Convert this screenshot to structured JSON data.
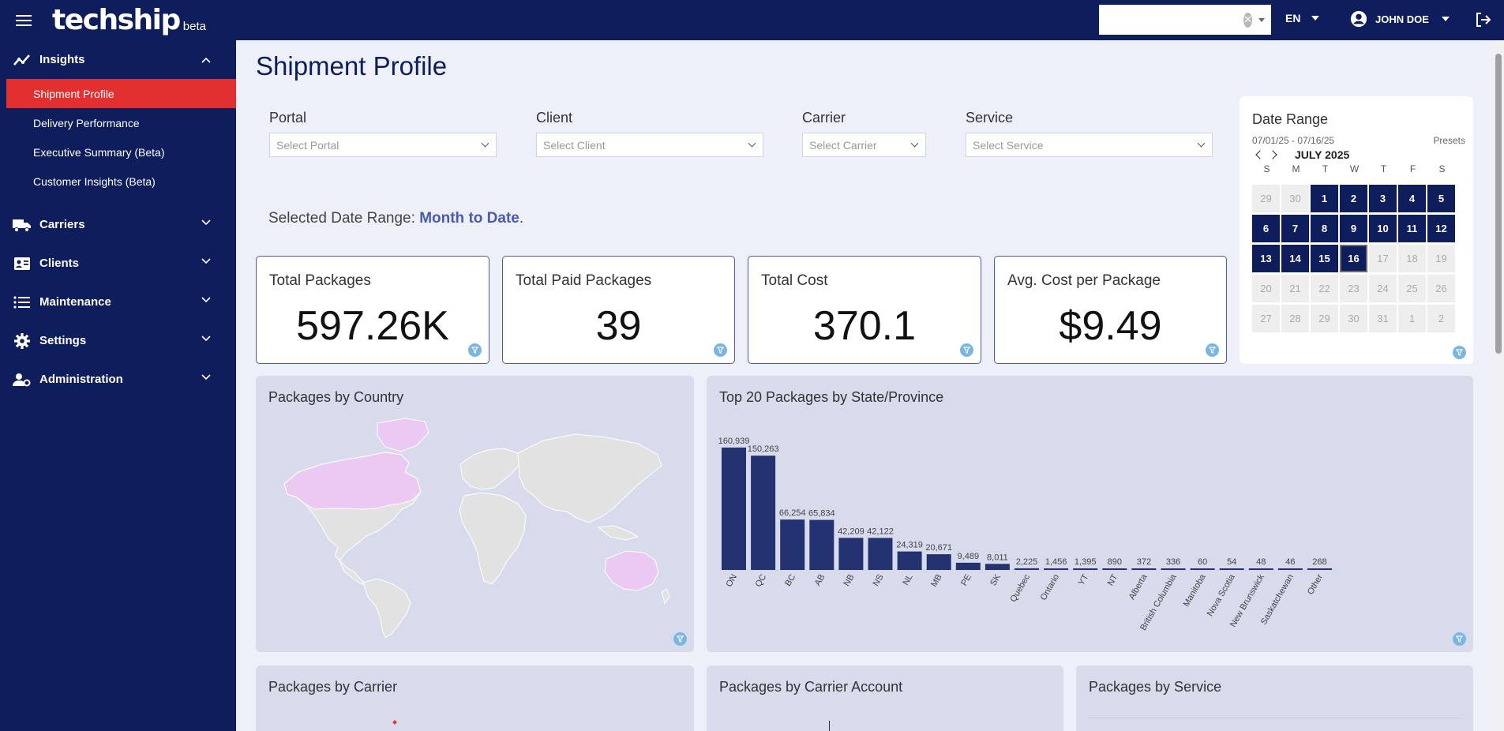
{
  "app": {
    "logo_text": "techship",
    "logo_badge": "beta"
  },
  "topbar": {
    "search_value": "",
    "language": "EN",
    "user_name": "JOHN DOE"
  },
  "sidebar": {
    "sections": [
      {
        "label": "Insights",
        "icon": "chart-line-icon",
        "expanded": true,
        "items": [
          "Shipment Profile",
          "Delivery Performance",
          "Executive Summary (Beta)",
          "Customer Insights (Beta)"
        ]
      },
      {
        "label": "Carriers",
        "icon": "truck-icon"
      },
      {
        "label": "Clients",
        "icon": "contact-card-icon"
      },
      {
        "label": "Maintenance",
        "icon": "list-icon"
      },
      {
        "label": "Settings",
        "icon": "gear-icon"
      },
      {
        "label": "Administration",
        "icon": "user-admin-icon"
      }
    ],
    "active_item": "Shipment Profile"
  },
  "page": {
    "title": "Shipment Profile"
  },
  "filters": {
    "portal": {
      "label": "Portal",
      "placeholder": "Select Portal"
    },
    "client": {
      "label": "Client",
      "placeholder": "Select Client"
    },
    "carrier": {
      "label": "Carrier",
      "placeholder": "Select Carrier"
    },
    "service": {
      "label": "Service",
      "placeholder": "Select Service"
    }
  },
  "selected_range": {
    "prefix": "Selected Date Range:",
    "value": "Month to Date",
    "suffix": "."
  },
  "kpis": [
    {
      "title": "Total Packages",
      "value": "597.26K"
    },
    {
      "title": "Total Paid Packages",
      "value": "39"
    },
    {
      "title": "Total Cost",
      "value": "370.1"
    },
    {
      "title": "Avg. Cost per Package",
      "value": "$9.49"
    }
  ],
  "calendar": {
    "title": "Date Range",
    "range": "07/01/25 - 07/16/25",
    "presets_label": "Presets",
    "month_label": "JULY 2025",
    "dows": [
      "S",
      "M",
      "T",
      "W",
      "T",
      "F",
      "S"
    ],
    "days": [
      [
        "29",
        "muted"
      ],
      [
        "30",
        "muted"
      ],
      [
        "1",
        "sel"
      ],
      [
        "2",
        "sel"
      ],
      [
        "3",
        "sel"
      ],
      [
        "4",
        "sel"
      ],
      [
        "5",
        "sel"
      ],
      [
        "6",
        "sel"
      ],
      [
        "7",
        "sel"
      ],
      [
        "8",
        "sel"
      ],
      [
        "9",
        "sel"
      ],
      [
        "10",
        "sel"
      ],
      [
        "11",
        "sel"
      ],
      [
        "12",
        "sel"
      ],
      [
        "13",
        "sel"
      ],
      [
        "14",
        "sel"
      ],
      [
        "15",
        "sel"
      ],
      [
        "16",
        "sel today"
      ],
      [
        "17",
        "muted"
      ],
      [
        "18",
        "muted"
      ],
      [
        "19",
        "muted"
      ],
      [
        "20",
        "muted"
      ],
      [
        "21",
        "muted"
      ],
      [
        "22",
        "muted"
      ],
      [
        "23",
        "muted"
      ],
      [
        "24",
        "muted"
      ],
      [
        "25",
        "muted"
      ],
      [
        "26",
        "muted"
      ],
      [
        "27",
        "muted"
      ],
      [
        "28",
        "muted"
      ],
      [
        "29",
        "muted"
      ],
      [
        "30",
        "muted"
      ],
      [
        "31",
        "muted"
      ],
      [
        "1",
        "muted"
      ],
      [
        "2",
        "muted"
      ]
    ]
  },
  "panels": {
    "country": {
      "title": "Packages by Country",
      "highlight": [
        "Canada",
        "Australia"
      ]
    },
    "state": {
      "title": "Top 20 Packages by State/Province"
    },
    "carrier": {
      "title": "Packages by Carrier"
    },
    "carrier_account": {
      "title": "Packages by Carrier Account"
    },
    "service": {
      "title": "Packages by Service"
    }
  },
  "colors": {
    "bar": "#233372",
    "nav": "#0e1d5c",
    "active": "#e23030",
    "map_land": "#e4e4e4",
    "map_highlight": "#ecc9f3"
  },
  "chart_data": {
    "type": "bar",
    "title": "Top 20 Packages by State/Province",
    "categories": [
      "ON",
      "QC",
      "BC",
      "AB",
      "NB",
      "NS",
      "NL",
      "MB",
      "PE",
      "SK",
      "Quebec",
      "Ontario",
      "YT",
      "NT",
      "Alberta",
      "British Columbia",
      "Manitoba",
      "Nova Scotia",
      "New Brunswick",
      "Saskatchewan",
      "Other"
    ],
    "values": [
      160939,
      150263,
      66254,
      65834,
      42209,
      42122,
      24319,
      20671,
      9489,
      8011,
      2225,
      1456,
      1395,
      890,
      372,
      336,
      60,
      54,
      48,
      46,
      268
    ],
    "labels": [
      "160,939",
      "150,263",
      "66,254",
      "65,834",
      "42,209",
      "42,122",
      "24,319",
      "20,671",
      "9,489",
      "8,011",
      "2,225",
      "1,456",
      "1,395",
      "890",
      "372",
      "336",
      "60",
      "54",
      "48",
      "46",
      "268"
    ],
    "ylim": [
      0,
      170000
    ],
    "grid": false
  }
}
